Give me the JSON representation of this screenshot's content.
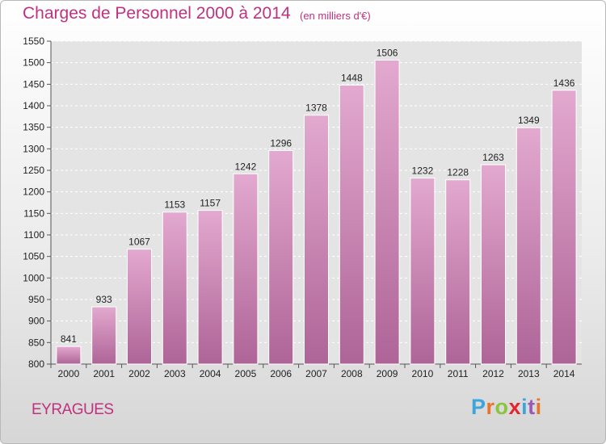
{
  "header": {
    "title": "Charges de Personnel 2000 à 2014",
    "unit": "(en milliers d'€)"
  },
  "footer": {
    "commune": "EYRAGUES",
    "logo_text": "Proxiti",
    "logo_colors": [
      "#3aa6dd",
      "#e8742a",
      "#8cc43e",
      "#e3262d",
      "#3aa6dd",
      "#9b59b6",
      "#e8742a"
    ]
  },
  "colors": {
    "title": "#c0317f",
    "bar_top": "#e3a9cf",
    "bar_bottom": "#ae6497",
    "plot_background": "#e4e4e4"
  },
  "chart_data": {
    "type": "bar",
    "title": "Charges de Personnel 2000 à 2014",
    "subtitle": "(en milliers d'€)",
    "categories": [
      "2000",
      "2001",
      "2002",
      "2003",
      "2004",
      "2005",
      "2006",
      "2007",
      "2008",
      "2009",
      "2010",
      "2011",
      "2012",
      "2013",
      "2014"
    ],
    "values": [
      841,
      933,
      1067,
      1153,
      1157,
      1242,
      1296,
      1378,
      1448,
      1506,
      1232,
      1228,
      1263,
      1349,
      1436
    ],
    "ylim": [
      800,
      1550
    ],
    "yticks": [
      800,
      850,
      900,
      950,
      1000,
      1050,
      1100,
      1150,
      1200,
      1250,
      1300,
      1350,
      1400,
      1450,
      1500,
      1550
    ],
    "grid": true,
    "data_labels": true
  }
}
